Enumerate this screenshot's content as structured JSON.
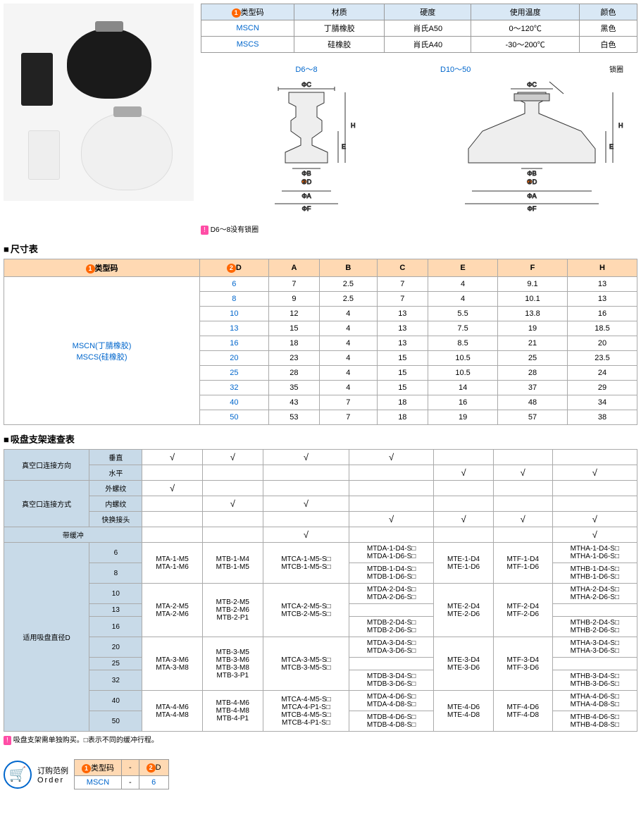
{
  "spec_table": {
    "headers": [
      "❶类型码",
      "材质",
      "硬度",
      "使用温度",
      "颜色"
    ],
    "rows": [
      [
        "MSCN",
        "丁腈橡胶",
        "肖氏A50",
        "0～120℃",
        "黑色"
      ],
      [
        "MSCS",
        "硅橡胶",
        "肖氏A40",
        "-30～200℃",
        "白色"
      ]
    ]
  },
  "diagram_labels": {
    "left": "D6～8",
    "right": "D10～50",
    "lock_ring": "锁圈",
    "note": "D6～8没有锁圈",
    "note_prefix": "!",
    "dims": {
      "phiC": "ΦC",
      "phiB": "ΦB",
      "phiA": "ΦA",
      "phiF": "ΦF",
      "H": "H",
      "E": "E",
      "D": "D"
    }
  },
  "dim_section_title": "尺寸表",
  "dim_table": {
    "headers": [
      "❶类型码",
      "❷D",
      "A",
      "B",
      "C",
      "E",
      "F",
      "H"
    ],
    "type_label": [
      "MSCN(丁腈橡胶)",
      "MSCS(硅橡胶)"
    ],
    "rows": [
      [
        "6",
        "7",
        "2.5",
        "7",
        "4",
        "9.1",
        "13"
      ],
      [
        "8",
        "9",
        "2.5",
        "7",
        "4",
        "10.1",
        "13"
      ],
      [
        "10",
        "12",
        "4",
        "13",
        "5.5",
        "13.8",
        "16"
      ],
      [
        "13",
        "15",
        "4",
        "13",
        "7.5",
        "19",
        "18.5"
      ],
      [
        "16",
        "18",
        "4",
        "13",
        "8.5",
        "21",
        "20"
      ],
      [
        "20",
        "23",
        "4",
        "15",
        "10.5",
        "25",
        "23.5"
      ],
      [
        "25",
        "28",
        "4",
        "15",
        "10.5",
        "28",
        "24"
      ],
      [
        "32",
        "35",
        "4",
        "15",
        "14",
        "37",
        "29"
      ],
      [
        "40",
        "43",
        "7",
        "18",
        "16",
        "48",
        "34"
      ],
      [
        "50",
        "53",
        "7",
        "18",
        "19",
        "57",
        "38"
      ]
    ]
  },
  "quick_section_title": "吸盘支架速查表",
  "quick_table": {
    "row_labels": {
      "dir": "真空口连接方向",
      "dir_v": "垂直",
      "dir_h": "水平",
      "method": "真空口连接方式",
      "m_ext": "外螺纹",
      "m_int": "内螺纹",
      "m_quick": "快换接头",
      "buffer": "带缓冲",
      "diameter": "适用吸盘直径D"
    },
    "checks_vertical": [
      true,
      true,
      true,
      true,
      false,
      false,
      false
    ],
    "checks_horizontal": [
      false,
      false,
      false,
      false,
      true,
      true,
      true
    ],
    "checks_ext": [
      true,
      false,
      false,
      false,
      false,
      false,
      false
    ],
    "checks_int": [
      false,
      true,
      true,
      false,
      false,
      false,
      false
    ],
    "checks_quick": [
      false,
      false,
      false,
      true,
      true,
      true,
      true
    ],
    "checks_buffer": [
      false,
      false,
      true,
      false,
      false,
      false,
      true
    ],
    "diameter_rows": [
      {
        "d": "6",
        "cells": [
          "",
          "",
          "",
          "MTDA-1-D4-S□\nMTDA-1-D6-S□",
          "",
          "",
          "MTHA-1-D4-S□\nMTHA-1-D6-S□"
        ],
        "merge": "start",
        "a": "MTA-1-M5\nMTA-1-M6",
        "b": "MTB-1-M4\nMTB-1-M5",
        "c": "MTCA-1-M5-S□\nMTCB-1-M5-S□",
        "e": "MTE-1-D4\nMTE-1-D6",
        "f": "MTF-1-D4\nMTF-1-D6"
      },
      {
        "d": "8",
        "cells": [
          "",
          "",
          "",
          "MTDB-1-D4-S□\nMTDB-1-D6-S□",
          "",
          "",
          "MTHB-1-D4-S□\nMTHB-1-D6-S□"
        ]
      },
      {
        "d": "10",
        "cells": [
          "",
          "",
          "",
          "MTDA-2-D4-S□\nMTDA-2-D6-S□",
          "",
          "",
          "MTHA-2-D4-S□\nMTHA-2-D6-S□"
        ],
        "merge": "start",
        "a": "MTA-2-M5\nMTA-2-M6",
        "b": "MTB-2-M5\nMTB-2-M6\nMTB-2-P1",
        "c": "MTCA-2-M5-S□\nMTCB-2-M5-S□",
        "e": "MTE-2-D4\nMTE-2-D6",
        "f": "MTF-2-D4\nMTF-2-D6"
      },
      {
        "d": "13",
        "cells": [
          "",
          "",
          "",
          "",
          "",
          "",
          ""
        ]
      },
      {
        "d": "16",
        "cells": [
          "",
          "",
          "",
          "MTDB-2-D4-S□\nMTDB-2-D6-S□",
          "",
          "",
          "MTHB-2-D4-S□\nMTHB-2-D6-S□"
        ]
      },
      {
        "d": "20",
        "cells": [
          "",
          "",
          "",
          "MTDA-3-D4-S□\nMTDA-3-D6-S□",
          "",
          "",
          "MTHA-3-D4-S□\nMTHA-3-D6-S□"
        ],
        "merge": "start",
        "a": "MTA-3-M6\nMTA-3-M8",
        "b": "MTB-3-M5\nMTB-3-M6\nMTB-3-M8\nMTB-3-P1",
        "c": "MTCA-3-M5-S□\nMTCB-3-M5-S□",
        "e": "MTE-3-D4\nMTE-3-D6",
        "f": "MTF-3-D4\nMTF-3-D6"
      },
      {
        "d": "25",
        "cells": [
          "",
          "",
          "",
          "",
          "",
          "",
          ""
        ]
      },
      {
        "d": "32",
        "cells": [
          "",
          "",
          "",
          "MTDB-3-D4-S□\nMTDB-3-D6-S□",
          "",
          "",
          "MTHB-3-D4-S□\nMTHB-3-D6-S□"
        ]
      },
      {
        "d": "40",
        "cells": [
          "",
          "",
          "",
          "MTDA-4-D6-S□\nMTDA-4-D8-S□",
          "",
          "",
          "MTHA-4-D6-S□\nMTHA-4-D8-S□"
        ],
        "merge": "start",
        "a": "MTA-4-M6\nMTA-4-M8",
        "b": "MTB-4-M6\nMTB-4-M8\nMTB-4-P1",
        "c": "MTCA-4-M5-S□\nMTCA-4-P1-S□\nMTCB-4-M5-S□\nMTCB-4-P1-S□",
        "e": "MTE-4-D6\nMTE-4-D8",
        "f": "MTF-4-D6\nMTF-4-D8"
      },
      {
        "d": "50",
        "cells": [
          "",
          "",
          "",
          "MTDB-4-D6-S□\nMTDB-4-D8-S□",
          "",
          "",
          "MTHB-4-D6-S□\nMTHB-4-D8-S□"
        ]
      }
    ],
    "footnote": "吸盘支架需单独购买。□表示不同的缓冲行程。"
  },
  "order": {
    "label1": "订购范例",
    "label2": "Order",
    "headers": [
      "❶类型码",
      "-",
      "❷D"
    ],
    "values": [
      "MSCN",
      "-",
      "6"
    ]
  },
  "colors": {
    "header_bg": "#d9e8f5",
    "dim_header_bg": "#ffd9b3",
    "quick_hdr_bg": "#c8dae8",
    "link": "#0066cc",
    "circle": "#ff6600",
    "note_bg": "#ff4da6"
  }
}
